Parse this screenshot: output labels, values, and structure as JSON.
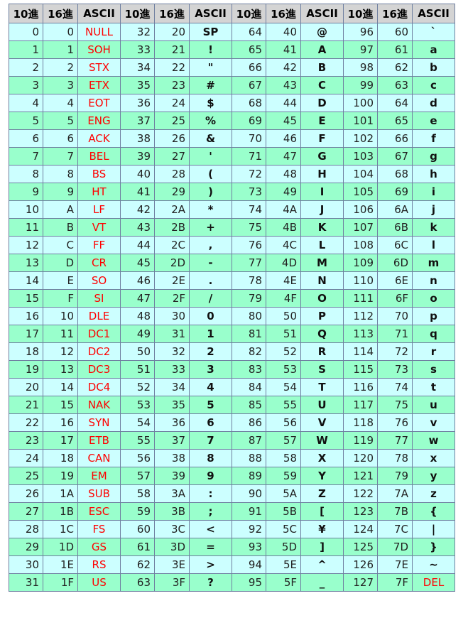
{
  "headers": [
    "10進",
    "16進",
    "ASCII",
    "10進",
    "16進",
    "ASCII",
    "10進",
    "16進",
    "ASCII",
    "10進",
    "16進",
    "ASCII"
  ],
  "control_color": "#ff0000",
  "row_colors": [
    "#ccffff",
    "#99ffcc"
  ],
  "rows": [
    [
      [
        "0",
        "0",
        "NULL"
      ],
      [
        "32",
        "20",
        "SP"
      ],
      [
        "64",
        "40",
        "@"
      ],
      [
        "96",
        "60",
        "`"
      ]
    ],
    [
      [
        "1",
        "1",
        "SOH"
      ],
      [
        "33",
        "21",
        "!"
      ],
      [
        "65",
        "41",
        "A"
      ],
      [
        "97",
        "61",
        "a"
      ]
    ],
    [
      [
        "2",
        "2",
        "STX"
      ],
      [
        "34",
        "22",
        "\""
      ],
      [
        "66",
        "42",
        "B"
      ],
      [
        "98",
        "62",
        "b"
      ]
    ],
    [
      [
        "3",
        "3",
        "ETX"
      ],
      [
        "35",
        "23",
        "#"
      ],
      [
        "67",
        "43",
        "C"
      ],
      [
        "99",
        "63",
        "c"
      ]
    ],
    [
      [
        "4",
        "4",
        "EOT"
      ],
      [
        "36",
        "24",
        "$"
      ],
      [
        "68",
        "44",
        "D"
      ],
      [
        "100",
        "64",
        "d"
      ]
    ],
    [
      [
        "5",
        "5",
        "ENG"
      ],
      [
        "37",
        "25",
        "%"
      ],
      [
        "69",
        "45",
        "E"
      ],
      [
        "101",
        "65",
        "e"
      ]
    ],
    [
      [
        "6",
        "6",
        "ACK"
      ],
      [
        "38",
        "26",
        "&"
      ],
      [
        "70",
        "46",
        "F"
      ],
      [
        "102",
        "66",
        "f"
      ]
    ],
    [
      [
        "7",
        "7",
        "BEL"
      ],
      [
        "39",
        "27",
        "'"
      ],
      [
        "71",
        "47",
        "G"
      ],
      [
        "103",
        "67",
        "g"
      ]
    ],
    [
      [
        "8",
        "8",
        "BS"
      ],
      [
        "40",
        "28",
        "("
      ],
      [
        "72",
        "48",
        "H"
      ],
      [
        "104",
        "68",
        "h"
      ]
    ],
    [
      [
        "9",
        "9",
        "HT"
      ],
      [
        "41",
        "29",
        ")"
      ],
      [
        "73",
        "49",
        "I"
      ],
      [
        "105",
        "69",
        "i"
      ]
    ],
    [
      [
        "10",
        "A",
        "LF"
      ],
      [
        "42",
        "2A",
        "*"
      ],
      [
        "74",
        "4A",
        "J"
      ],
      [
        "106",
        "6A",
        "j"
      ]
    ],
    [
      [
        "11",
        "B",
        "VT"
      ],
      [
        "43",
        "2B",
        "+"
      ],
      [
        "75",
        "4B",
        "K"
      ],
      [
        "107",
        "6B",
        "k"
      ]
    ],
    [
      [
        "12",
        "C",
        "FF"
      ],
      [
        "44",
        "2C",
        ","
      ],
      [
        "76",
        "4C",
        "L"
      ],
      [
        "108",
        "6C",
        "l"
      ]
    ],
    [
      [
        "13",
        "D",
        "CR"
      ],
      [
        "45",
        "2D",
        "-"
      ],
      [
        "77",
        "4D",
        "M"
      ],
      [
        "109",
        "6D",
        "m"
      ]
    ],
    [
      [
        "14",
        "E",
        "SO"
      ],
      [
        "46",
        "2E",
        "."
      ],
      [
        "78",
        "4E",
        "N"
      ],
      [
        "110",
        "6E",
        "n"
      ]
    ],
    [
      [
        "15",
        "F",
        "SI"
      ],
      [
        "47",
        "2F",
        "/"
      ],
      [
        "79",
        "4F",
        "O"
      ],
      [
        "111",
        "6F",
        "o"
      ]
    ],
    [
      [
        "16",
        "10",
        "DLE"
      ],
      [
        "48",
        "30",
        "0"
      ],
      [
        "80",
        "50",
        "P"
      ],
      [
        "112",
        "70",
        "p"
      ]
    ],
    [
      [
        "17",
        "11",
        "DC1"
      ],
      [
        "49",
        "31",
        "1"
      ],
      [
        "81",
        "51",
        "Q"
      ],
      [
        "113",
        "71",
        "q"
      ]
    ],
    [
      [
        "18",
        "12",
        "DC2"
      ],
      [
        "50",
        "32",
        "2"
      ],
      [
        "82",
        "52",
        "R"
      ],
      [
        "114",
        "72",
        "r"
      ]
    ],
    [
      [
        "19",
        "13",
        "DC3"
      ],
      [
        "51",
        "33",
        "3"
      ],
      [
        "83",
        "53",
        "S"
      ],
      [
        "115",
        "73",
        "s"
      ]
    ],
    [
      [
        "20",
        "14",
        "DC4"
      ],
      [
        "52",
        "34",
        "4"
      ],
      [
        "84",
        "54",
        "T"
      ],
      [
        "116",
        "74",
        "t"
      ]
    ],
    [
      [
        "21",
        "15",
        "NAK"
      ],
      [
        "53",
        "35",
        "5"
      ],
      [
        "85",
        "55",
        "U"
      ],
      [
        "117",
        "75",
        "u"
      ]
    ],
    [
      [
        "22",
        "16",
        "SYN"
      ],
      [
        "54",
        "36",
        "6"
      ],
      [
        "86",
        "56",
        "V"
      ],
      [
        "118",
        "76",
        "v"
      ]
    ],
    [
      [
        "23",
        "17",
        "ETB"
      ],
      [
        "55",
        "37",
        "7"
      ],
      [
        "87",
        "57",
        "W"
      ],
      [
        "119",
        "77",
        "w"
      ]
    ],
    [
      [
        "24",
        "18",
        "CAN"
      ],
      [
        "56",
        "38",
        "8"
      ],
      [
        "88",
        "58",
        "X"
      ],
      [
        "120",
        "78",
        "x"
      ]
    ],
    [
      [
        "25",
        "19",
        "EM"
      ],
      [
        "57",
        "39",
        "9"
      ],
      [
        "89",
        "59",
        "Y"
      ],
      [
        "121",
        "79",
        "y"
      ]
    ],
    [
      [
        "26",
        "1A",
        "SUB"
      ],
      [
        "58",
        "3A",
        ":"
      ],
      [
        "90",
        "5A",
        "Z"
      ],
      [
        "122",
        "7A",
        "z"
      ]
    ],
    [
      [
        "27",
        "1B",
        "ESC"
      ],
      [
        "59",
        "3B",
        ";"
      ],
      [
        "91",
        "5B",
        "["
      ],
      [
        "123",
        "7B",
        "{"
      ]
    ],
    [
      [
        "28",
        "1C",
        "FS"
      ],
      [
        "60",
        "3C",
        "<"
      ],
      [
        "92",
        "5C",
        "¥"
      ],
      [
        "124",
        "7C",
        "|"
      ]
    ],
    [
      [
        "29",
        "1D",
        "GS"
      ],
      [
        "61",
        "3D",
        "="
      ],
      [
        "93",
        "5D",
        "]"
      ],
      [
        "125",
        "7D",
        "}"
      ]
    ],
    [
      [
        "30",
        "1E",
        "RS"
      ],
      [
        "62",
        "3E",
        ">"
      ],
      [
        "94",
        "5E",
        "^"
      ],
      [
        "126",
        "7E",
        "~"
      ]
    ],
    [
      [
        "31",
        "1F",
        "US"
      ],
      [
        "63",
        "3F",
        "?"
      ],
      [
        "95",
        "5F",
        "_"
      ],
      [
        "127",
        "7F",
        "DEL"
      ]
    ]
  ]
}
